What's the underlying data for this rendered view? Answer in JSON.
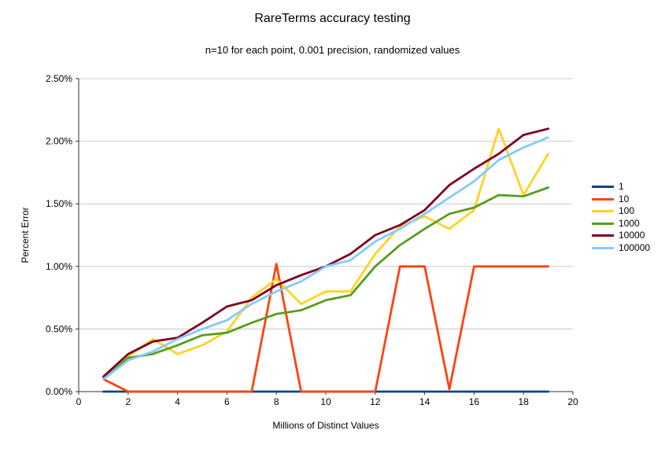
{
  "title": "RareTerms accuracy testing",
  "subtitle": "n=10 for each point, 0.001 precision, randomized values",
  "chart_data": {
    "type": "line",
    "title": "RareTerms accuracy testing",
    "subtitle": "n=10 for each point, 0.001 precision, randomized values",
    "xlabel": "Millions of Distinct Values",
    "ylabel": "Percent Error",
    "xlim": [
      0,
      20
    ],
    "ylim": [
      0,
      2.5
    ],
    "x_ticks": [
      0,
      2,
      4,
      6,
      8,
      10,
      12,
      14,
      16,
      18,
      20
    ],
    "x_tick_labels": [
      "0",
      "2",
      "4",
      "6",
      "8",
      "10",
      "12",
      "14",
      "16",
      "18",
      "20"
    ],
    "y_ticks": [
      0,
      0.5,
      1.0,
      1.5,
      2.0,
      2.5
    ],
    "y_tick_labels": [
      "0.00%",
      "0.50%",
      "1.00%",
      "1.50%",
      "2.00%",
      "2.50%"
    ],
    "grid": true,
    "legend_position": "right",
    "grid_color": "#c9c9c9",
    "axis_color": "#333333",
    "x": [
      1,
      2,
      3,
      4,
      5,
      6,
      7,
      8,
      9,
      10,
      11,
      12,
      13,
      14,
      15,
      16,
      17,
      18,
      19
    ],
    "series": [
      {
        "name": "1",
        "color": "#004586",
        "values": [
          0,
          0,
          0,
          0,
          0,
          0,
          0,
          0,
          0,
          0,
          0,
          0,
          0,
          0,
          0,
          0,
          0,
          0,
          0
        ]
      },
      {
        "name": "10",
        "color": "#ff420e",
        "values": [
          0.1,
          0,
          0,
          0,
          0,
          0,
          0,
          1.02,
          0,
          0,
          0,
          0,
          1.0,
          1.0,
          0.02,
          1.0,
          1.0,
          1.0,
          1.0
        ]
      },
      {
        "name": "100",
        "color": "#ffd320",
        "values": [
          0.1,
          0.28,
          0.42,
          0.3,
          0.37,
          0.48,
          0.75,
          0.9,
          0.7,
          0.8,
          0.8,
          1.1,
          1.32,
          1.4,
          1.3,
          1.45,
          2.1,
          1.57,
          1.9
        ]
      },
      {
        "name": "1000",
        "color": "#579d1c",
        "values": [
          0.1,
          0.27,
          0.3,
          0.37,
          0.45,
          0.47,
          0.55,
          0.62,
          0.65,
          0.73,
          0.77,
          1.0,
          1.17,
          1.3,
          1.42,
          1.47,
          1.57,
          1.56,
          1.63
        ]
      },
      {
        "name": "10000",
        "color": "#7e0021",
        "values": [
          0.12,
          0.3,
          0.4,
          0.43,
          0.55,
          0.68,
          0.73,
          0.85,
          0.93,
          1.0,
          1.1,
          1.25,
          1.33,
          1.45,
          1.65,
          1.78,
          1.9,
          2.05,
          2.1
        ]
      },
      {
        "name": "100000",
        "color": "#83caff",
        "values": [
          0.1,
          0.25,
          0.32,
          0.42,
          0.5,
          0.57,
          0.7,
          0.8,
          0.88,
          1.0,
          1.05,
          1.2,
          1.3,
          1.42,
          1.55,
          1.68,
          1.85,
          1.95,
          2.03
        ]
      }
    ]
  }
}
